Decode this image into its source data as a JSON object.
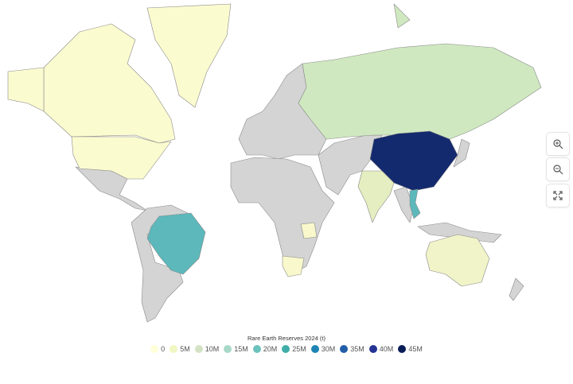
{
  "legend": {
    "title": "Rare Earth Reserves 2024 (t)",
    "items": [
      {
        "label": "0",
        "color": "#ffffd9"
      },
      {
        "label": "5M",
        "color": "#f1f7c2"
      },
      {
        "label": "10M",
        "color": "#d3e2c4"
      },
      {
        "label": "15M",
        "color": "#a7d8c8"
      },
      {
        "label": "20M",
        "color": "#6cc2bd"
      },
      {
        "label": "25M",
        "color": "#41ada8"
      },
      {
        "label": "30M",
        "color": "#1d84b5"
      },
      {
        "label": "35M",
        "color": "#225ea8"
      },
      {
        "label": "40M",
        "color": "#253494"
      },
      {
        "label": "45M",
        "color": "#081d58"
      }
    ]
  },
  "controls": {
    "zoom_in": "zoom-in-icon",
    "zoom_out": "zoom-out-icon",
    "fullscreen": "fullscreen-icon"
  },
  "colors": {
    "no_data": "#d4d4d4",
    "border": "#8a8a8a"
  },
  "countries": [
    {
      "name": "China",
      "color": "#142a6e"
    },
    {
      "name": "Brazil",
      "color": "#5cb8bb"
    },
    {
      "name": "Vietnam",
      "color": "#5cb8bb"
    },
    {
      "name": "Russia",
      "color": "#cfe8c0"
    },
    {
      "name": "India",
      "color": "#e4eec0"
    },
    {
      "name": "Australia",
      "color": "#f1f4c8"
    },
    {
      "name": "United States",
      "color": "#fbfbd0"
    },
    {
      "name": "Canada",
      "color": "#fbfbd0"
    },
    {
      "name": "Greenland",
      "color": "#fbfbd0"
    },
    {
      "name": "Tanzania",
      "color": "#f8f8cc"
    },
    {
      "name": "South Africa",
      "color": "#f8f8cc"
    }
  ]
}
